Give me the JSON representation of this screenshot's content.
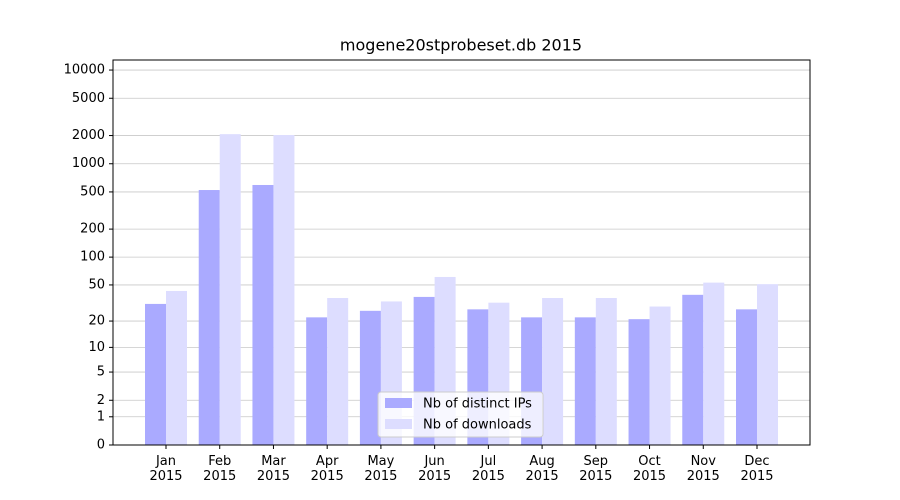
{
  "chart_data": {
    "type": "bar",
    "title": "mogene20stprobeset.db 2015",
    "categories": [
      "Jan 2015",
      "Feb 2015",
      "Mar 2015",
      "Apr 2015",
      "May 2015",
      "Jun 2015",
      "Jul 2015",
      "Aug 2015",
      "Sep 2015",
      "Oct 2015",
      "Nov 2015",
      "Dec 2015"
    ],
    "series": [
      {
        "name": "Nb of distinct IPs",
        "color": "#aaaaff",
        "values": [
          31,
          524,
          593,
          22,
          26,
          37,
          27,
          22,
          22,
          21,
          39,
          27
        ]
      },
      {
        "name": "Nb of downloads",
        "color": "#ddddff",
        "values": [
          43,
          2070,
          2025,
          36,
          33,
          61,
          32,
          36,
          36,
          29,
          53,
          51
        ]
      }
    ],
    "ylim": [
      0,
      12800
    ],
    "yticks": [
      0,
      1,
      2,
      5,
      10,
      20,
      50,
      100,
      200,
      500,
      1000,
      2000,
      5000,
      10000
    ],
    "log_scale": true,
    "grid": true,
    "legend_position": "lower center"
  }
}
